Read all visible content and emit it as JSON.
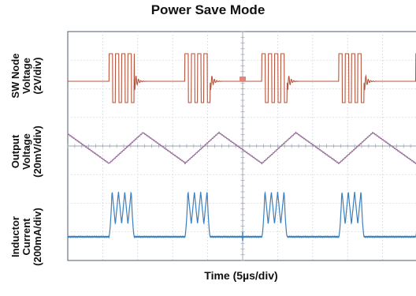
{
  "chart_data": {
    "type": "line",
    "title": "Power Save Mode",
    "xlabel": "Time (5µs/div)",
    "x_divisions": 10,
    "grid": true,
    "channels": [
      {
        "name": "SW Node Voltage",
        "scale_line1": "SW Node",
        "scale_line2": "Voltage",
        "scale_line3": "(2V/div)",
        "unit_per_div": "2V/div",
        "color": "#b5553d"
      },
      {
        "name": "Output Voltage",
        "scale_line1": "Output",
        "scale_line2": "Voltage",
        "scale_line3": "(20mV/div)",
        "unit_per_div": "20mV/div",
        "color": "#9a6f9c"
      },
      {
        "name": "Inductor Current",
        "scale_line1": "Inductor",
        "scale_line2": "Current",
        "scale_line3": "(200mA/div)",
        "unit_per_div": "200mA/div",
        "color": "#3a7fbf"
      }
    ],
    "burst_period_div": 2.2,
    "burst_starts_div": [
      1.18,
      3.35,
      5.55,
      7.75,
      9.95
    ],
    "burst_pulses": 4,
    "colors": {
      "grid": "#c9d0d8",
      "frame": "#6c7480",
      "marker": "#e5847a"
    }
  }
}
